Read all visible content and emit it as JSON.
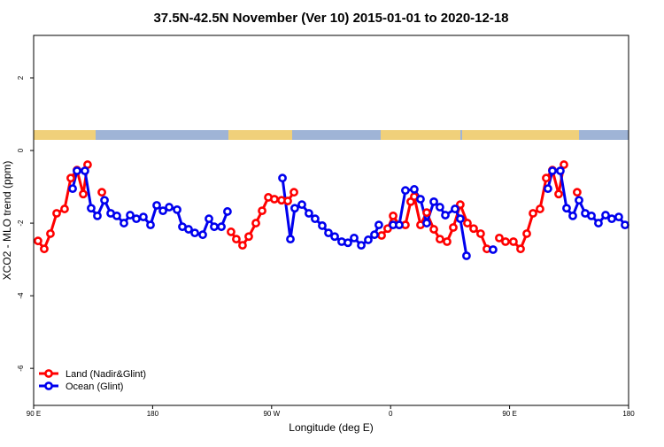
{
  "chart_data": {
    "type": "line",
    "title": "37.5N-42.5N November (Ver 10)   2015-01-01 to 2020-12-18",
    "x_label": "Longitude (deg E)",
    "y_label": "XCO2 - MLO trend (ppm)",
    "xlim": [
      90,
      540
    ],
    "ylim": [
      -7.02,
      3.17
    ],
    "xticks": [
      {
        "value": 90,
        "label": "90 E"
      },
      {
        "value": 180,
        "label": "180"
      },
      {
        "value": 270,
        "label": "90 W"
      },
      {
        "value": 360,
        "label": "0"
      },
      {
        "value": 450,
        "label": "90 E"
      },
      {
        "value": 540,
        "label": "180"
      }
    ],
    "yticks": [
      -6,
      -4,
      -2,
      0,
      2
    ],
    "legend": "lower left",
    "series": [
      {
        "name": "Land (Nadir&Glint)",
        "color": "#ff0000",
        "x": [
          93.3,
          98.0,
          102.7,
          107.4,
          113.4,
          118.1,
          122.8,
          127.5,
          130.8,
          null,
          141.6,
          null,
          239.3,
          243.3,
          248.0,
          252.7,
          258.1,
          262.8,
          267.5,
          272.1,
          277.5,
          282.2,
          286.9,
          null,
          353.2,
          357.8,
          361.9,
          366.5,
          371.2,
          375.2,
          377.9,
          382.6,
          387.3,
          392.7,
          397.3,
          402.7,
          407.4,
          412.7,
          418.1,
          422.8,
          428.1,
          432.8,
          null,
          442.2,
          446.9,
          452.9,
          458.3,
          463.0,
          467.7,
          473.0,
          477.7,
          482.4,
          487.1,
          491.1,
          null,
          501.1
        ],
        "values": [
          -2.49,
          -2.71,
          -2.29,
          -1.73,
          -1.61,
          -0.76,
          -0.54,
          -1.2,
          -0.39,
          null,
          -1.15,
          null,
          -2.24,
          -2.44,
          -2.61,
          -2.37,
          -2.0,
          -1.66,
          -1.29,
          -1.34,
          -1.37,
          -1.39,
          -1.15,
          null,
          -2.34,
          -2.15,
          -1.8,
          -2.05,
          -2.05,
          -1.41,
          -1.27,
          -2.05,
          -1.71,
          -2.17,
          -2.44,
          -2.51,
          -2.12,
          -1.49,
          -2.0,
          -2.15,
          -2.29,
          -2.71,
          null,
          -2.41,
          -2.51,
          -2.51,
          -2.71,
          -2.29,
          -1.73,
          -1.61,
          -0.76,
          -0.54,
          -1.2,
          -0.39,
          null,
          -1.15
        ]
      },
      {
        "name": "Ocean (Glint)",
        "color": "#0000ee",
        "x": [
          119.5,
          122.8,
          128.8,
          133.5,
          138.2,
          143.6,
          148.3,
          152.9,
          158.3,
          163.0,
          167.7,
          173.0,
          178.4,
          183.1,
          187.8,
          192.5,
          198.5,
          202.5,
          207.2,
          211.9,
          217.9,
          222.6,
          226.6,
          232.0,
          236.6,
          null,
          278.2,
          284.2,
          287.5,
          292.9,
          298.2,
          302.9,
          308.3,
          313.0,
          317.7,
          323.0,
          327.7,
          332.4,
          337.8,
          343.1,
          347.8,
          351.1,
          null,
          361.9,
          366.5,
          371.2,
          377.9,
          382.6,
          387.3,
          392.7,
          397.3,
          401.4,
          408.7,
          412.7,
          417.4,
          null,
          437.5,
          null,
          479.0,
          482.4,
          488.4,
          493.1,
          497.8,
          502.5,
          507.2,
          511.9,
          517.2,
          522.6,
          527.3,
          532.6,
          537.3
        ],
        "values": [
          -1.05,
          -0.56,
          -0.56,
          -1.59,
          -1.8,
          -1.37,
          -1.73,
          -1.8,
          -2.0,
          -1.78,
          -1.88,
          -1.83,
          -2.05,
          -1.51,
          -1.66,
          -1.56,
          -1.63,
          -2.1,
          -2.17,
          -2.27,
          -2.32,
          -1.88,
          -2.1,
          -2.1,
          -1.68,
          null,
          -0.76,
          -2.44,
          -1.59,
          -1.49,
          -1.73,
          -1.88,
          -2.07,
          -2.27,
          -2.37,
          -2.51,
          -2.54,
          -2.41,
          -2.61,
          -2.46,
          -2.32,
          -2.05,
          null,
          -2.05,
          -2.05,
          -1.1,
          -1.07,
          -1.34,
          -2.0,
          -1.41,
          -1.56,
          -1.78,
          -1.61,
          -1.88,
          -2.9,
          null,
          -2.73,
          null,
          -1.05,
          -0.56,
          -0.56,
          -1.59,
          -1.8,
          -1.37,
          -1.73,
          -1.8,
          -2.0,
          -1.78,
          -1.88,
          -1.83,
          -2.05
        ]
      }
    ]
  }
}
